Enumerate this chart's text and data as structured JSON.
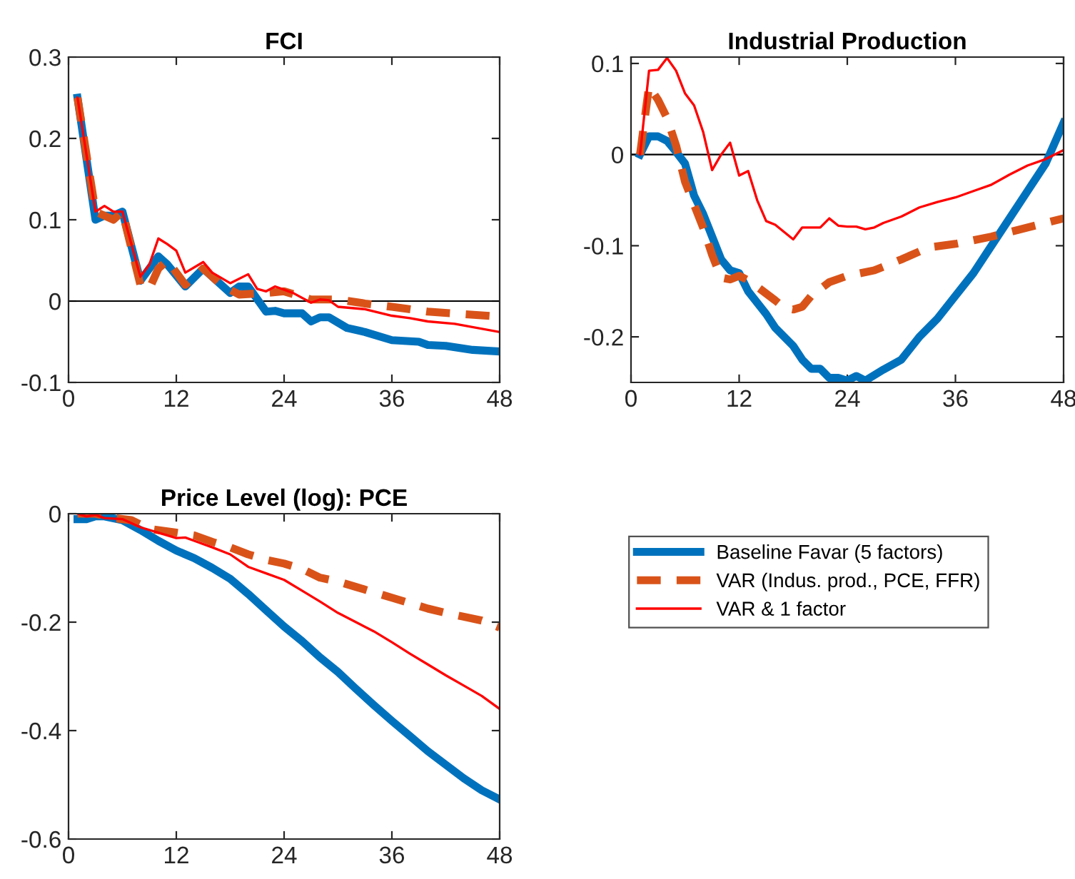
{
  "chart_data": [
    {
      "type": "line",
      "title": "FCI",
      "xlim": [
        0,
        48
      ],
      "xticks": [
        0,
        12,
        24,
        36,
        48
      ],
      "ylim": [
        -0.1,
        0.3
      ],
      "yticks": [
        -0.1,
        0,
        0.1,
        0.2,
        0.3
      ],
      "grid": false,
      "legend": false,
      "ref_lines": [
        {
          "axis": "y",
          "value": 0,
          "color": "#000000"
        }
      ],
      "series": [
        {
          "color": "#0072bd",
          "line_style": "solid",
          "x": [
            1,
            3,
            4,
            5,
            6,
            8,
            10,
            11,
            13,
            15,
            16,
            18,
            19,
            20,
            22,
            23,
            24,
            26,
            27,
            28,
            29,
            31,
            33,
            36,
            39,
            40,
            42,
            45,
            48
          ],
          "values": [
            0.25,
            0.1,
            0.105,
            0.105,
            0.11,
            0.025,
            0.055,
            0.045,
            0.018,
            0.04,
            0.03,
            0.01,
            0.018,
            0.018,
            -0.013,
            -0.012,
            -0.015,
            -0.015,
            -0.025,
            -0.02,
            -0.02,
            -0.033,
            -0.038,
            -0.048,
            -0.05,
            -0.054,
            -0.055,
            -0.06,
            -0.062
          ]
        },
        {
          "color": "#d95319",
          "line_style": "dashed",
          "x": [
            1,
            3,
            5,
            6,
            8,
            9,
            10,
            11,
            13,
            15,
            17,
            19,
            22,
            24,
            27,
            30,
            33,
            36,
            40,
            44,
            48
          ],
          "values": [
            0.25,
            0.11,
            0.1,
            0.11,
            0.02,
            0.015,
            0.04,
            0.05,
            0.02,
            0.04,
            0.02,
            0.008,
            0.01,
            0.012,
            0.002,
            0.002,
            -0.003,
            -0.007,
            -0.013,
            -0.016,
            -0.019
          ]
        },
        {
          "color": "#ff0000",
          "line_style": "solid",
          "x": [
            1,
            3,
            4,
            5,
            6,
            8,
            9,
            10,
            11,
            12,
            13,
            15,
            16,
            18,
            20,
            21,
            22,
            23,
            25,
            27,
            28,
            29,
            30,
            33,
            36,
            38,
            40,
            43,
            48
          ],
          "values": [
            0.25,
            0.11,
            0.117,
            0.11,
            0.11,
            0.03,
            0.045,
            0.077,
            0.07,
            0.062,
            0.035,
            0.048,
            0.035,
            0.022,
            0.033,
            0.015,
            0.012,
            0.018,
            0.01,
            -0.002,
            0.002,
            0.001,
            -0.007,
            -0.01,
            -0.018,
            -0.021,
            -0.025,
            -0.028,
            -0.038
          ]
        }
      ]
    },
    {
      "type": "line",
      "title": "Industrial Production",
      "xlim": [
        0,
        48
      ],
      "xticks": [
        0,
        12,
        24,
        36,
        48
      ],
      "ylim": [
        -0.25,
        0.107
      ],
      "yticks": [
        -0.2,
        -0.1,
        0,
        0.1
      ],
      "grid": false,
      "legend": false,
      "ref_lines": [
        {
          "axis": "y",
          "value": 0,
          "color": "#000000"
        }
      ],
      "series": [
        {
          "color": "#0072bd",
          "line_style": "solid",
          "x": [
            1,
            2,
            3,
            4,
            5,
            6,
            7,
            8,
            9,
            10,
            11,
            12,
            13,
            15,
            16,
            18,
            19,
            20,
            21,
            22,
            23,
            24,
            25,
            26,
            27,
            28,
            30,
            32,
            34,
            36,
            38,
            40,
            42,
            44,
            46,
            48
          ],
          "values": [
            0,
            0.02,
            0.02,
            0.015,
            0.003,
            -0.01,
            -0.045,
            -0.065,
            -0.09,
            -0.115,
            -0.127,
            -0.13,
            -0.15,
            -0.175,
            -0.19,
            -0.21,
            -0.225,
            -0.235,
            -0.235,
            -0.245,
            -0.245,
            -0.248,
            -0.243,
            -0.248,
            -0.242,
            -0.236,
            -0.225,
            -0.2,
            -0.18,
            -0.155,
            -0.13,
            -0.1,
            -0.07,
            -0.04,
            -0.01,
            0.035
          ]
        },
        {
          "color": "#d95319",
          "line_style": "dashed",
          "x": [
            1,
            2,
            3,
            4,
            5,
            6,
            8,
            9,
            10,
            11,
            12,
            13,
            14,
            16,
            17,
            18,
            19,
            20,
            22,
            24,
            27,
            30,
            33,
            36,
            40,
            44,
            48
          ],
          "values": [
            0,
            0.075,
            0.06,
            0.04,
            0.01,
            -0.03,
            -0.08,
            -0.11,
            -0.135,
            -0.137,
            -0.133,
            -0.138,
            -0.145,
            -0.16,
            -0.168,
            -0.17,
            -0.167,
            -0.155,
            -0.14,
            -0.133,
            -0.127,
            -0.115,
            -0.102,
            -0.098,
            -0.09,
            -0.08,
            -0.07
          ]
        },
        {
          "color": "#ff0000",
          "line_style": "solid",
          "x": [
            1,
            2,
            3,
            4,
            5,
            6,
            7,
            8,
            9,
            10,
            11,
            12,
            13,
            14,
            15,
            16,
            18,
            19,
            20,
            21,
            22,
            23,
            24,
            25,
            26,
            27,
            28,
            30,
            32,
            34,
            36,
            38,
            40,
            42,
            44,
            46,
            48
          ],
          "values": [
            0,
            0.092,
            0.093,
            0.106,
            0.092,
            0.067,
            0.054,
            0.025,
            -0.017,
            0,
            0.013,
            -0.023,
            -0.018,
            -0.05,
            -0.073,
            -0.077,
            -0.093,
            -0.08,
            -0.08,
            -0.08,
            -0.07,
            -0.078,
            -0.079,
            -0.079,
            -0.082,
            -0.08,
            -0.075,
            -0.068,
            -0.058,
            -0.052,
            -0.047,
            -0.04,
            -0.033,
            -0.022,
            -0.012,
            -0.005,
            0.005
          ]
        }
      ]
    },
    {
      "type": "line",
      "title": "Price Level (log): PCE",
      "xlim": [
        0,
        48
      ],
      "xticks": [
        0,
        12,
        24,
        36,
        48
      ],
      "ylim": [
        -0.6,
        0
      ],
      "yticks": [
        -0.6,
        -0.4,
        -0.2,
        0
      ],
      "grid": false,
      "legend": "right",
      "series": [
        {
          "name": "Baseline Favar (5 factors)",
          "color": "#0072bd",
          "line_style": "solid",
          "x": [
            1,
            2,
            3,
            4,
            6,
            8,
            10,
            12,
            14,
            16,
            18,
            20,
            22,
            24,
            26,
            28,
            30,
            32,
            34,
            36,
            38,
            40,
            42,
            44,
            46,
            48
          ],
          "values": [
            -0.01,
            -0.01,
            -0.005,
            -0.005,
            -0.012,
            -0.03,
            -0.05,
            -0.068,
            -0.082,
            -0.1,
            -0.12,
            -0.148,
            -0.178,
            -0.208,
            -0.235,
            -0.265,
            -0.292,
            -0.323,
            -0.353,
            -0.382,
            -0.41,
            -0.438,
            -0.463,
            -0.488,
            -0.51,
            -0.527
          ]
        },
        {
          "name": "VAR (Indus. prod., PCE, FFR)",
          "color": "#d95319",
          "line_style": "dashed",
          "x": [
            1,
            3,
            5,
            7,
            9,
            12,
            14,
            16,
            18,
            20,
            22,
            24,
            26,
            28,
            30,
            32,
            34,
            36,
            38,
            40,
            42,
            44,
            46,
            48
          ],
          "values": [
            0,
            0,
            -0.008,
            -0.012,
            -0.028,
            -0.035,
            -0.04,
            -0.052,
            -0.062,
            -0.075,
            -0.085,
            -0.092,
            -0.102,
            -0.118,
            -0.125,
            -0.135,
            -0.145,
            -0.155,
            -0.165,
            -0.175,
            -0.183,
            -0.19,
            -0.197,
            -0.21
          ]
        },
        {
          "name": "VAR & 1 factor",
          "color": "#ff0000",
          "line_style": "solid",
          "x": [
            1,
            2,
            3,
            4,
            6,
            8,
            10,
            12,
            13,
            14,
            16,
            18,
            20,
            22,
            24,
            26,
            28,
            30,
            32,
            34,
            36,
            38,
            40,
            42,
            44,
            46,
            48
          ],
          "values": [
            0,
            -0.005,
            -0.002,
            -0.008,
            -0.01,
            -0.025,
            -0.035,
            -0.045,
            -0.044,
            -0.05,
            -0.062,
            -0.075,
            -0.098,
            -0.11,
            -0.122,
            -0.142,
            -0.162,
            -0.183,
            -0.2,
            -0.217,
            -0.237,
            -0.258,
            -0.278,
            -0.298,
            -0.317,
            -0.336,
            -0.36
          ]
        }
      ]
    }
  ]
}
